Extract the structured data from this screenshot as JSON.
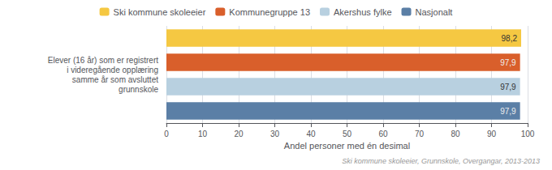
{
  "chart_data": {
    "type": "bar",
    "orientation": "horizontal",
    "categories": [
      "Ski kommune skoleeier",
      "Kommunegruppe 13",
      "Akershus fylke",
      "Nasjonalt"
    ],
    "values": [
      98.2,
      97.9,
      97.9,
      97.9
    ],
    "value_labels": [
      "98,2",
      "97,9",
      "97,9",
      "97,9"
    ],
    "colors": [
      "#F5C842",
      "#D95F2B",
      "#B8D0E0",
      "#5B7FA6"
    ],
    "data_labels": true,
    "ylabel": "Elever (16 år) som er registrert\ni videregående opplæring\nsamme år som avsluttet\ngrunnskole",
    "xlabel": "Andel personer med én desimal",
    "footer": "Ski kommune skoleeier, Grunnskole, Overgangar, 2013-2013",
    "xlim": [
      0,
      100
    ],
    "xticks": [
      0,
      10,
      20,
      30,
      40,
      50,
      60,
      70,
      80,
      90,
      100
    ],
    "grid": true,
    "legend": "top",
    "tick_labels": "x"
  }
}
